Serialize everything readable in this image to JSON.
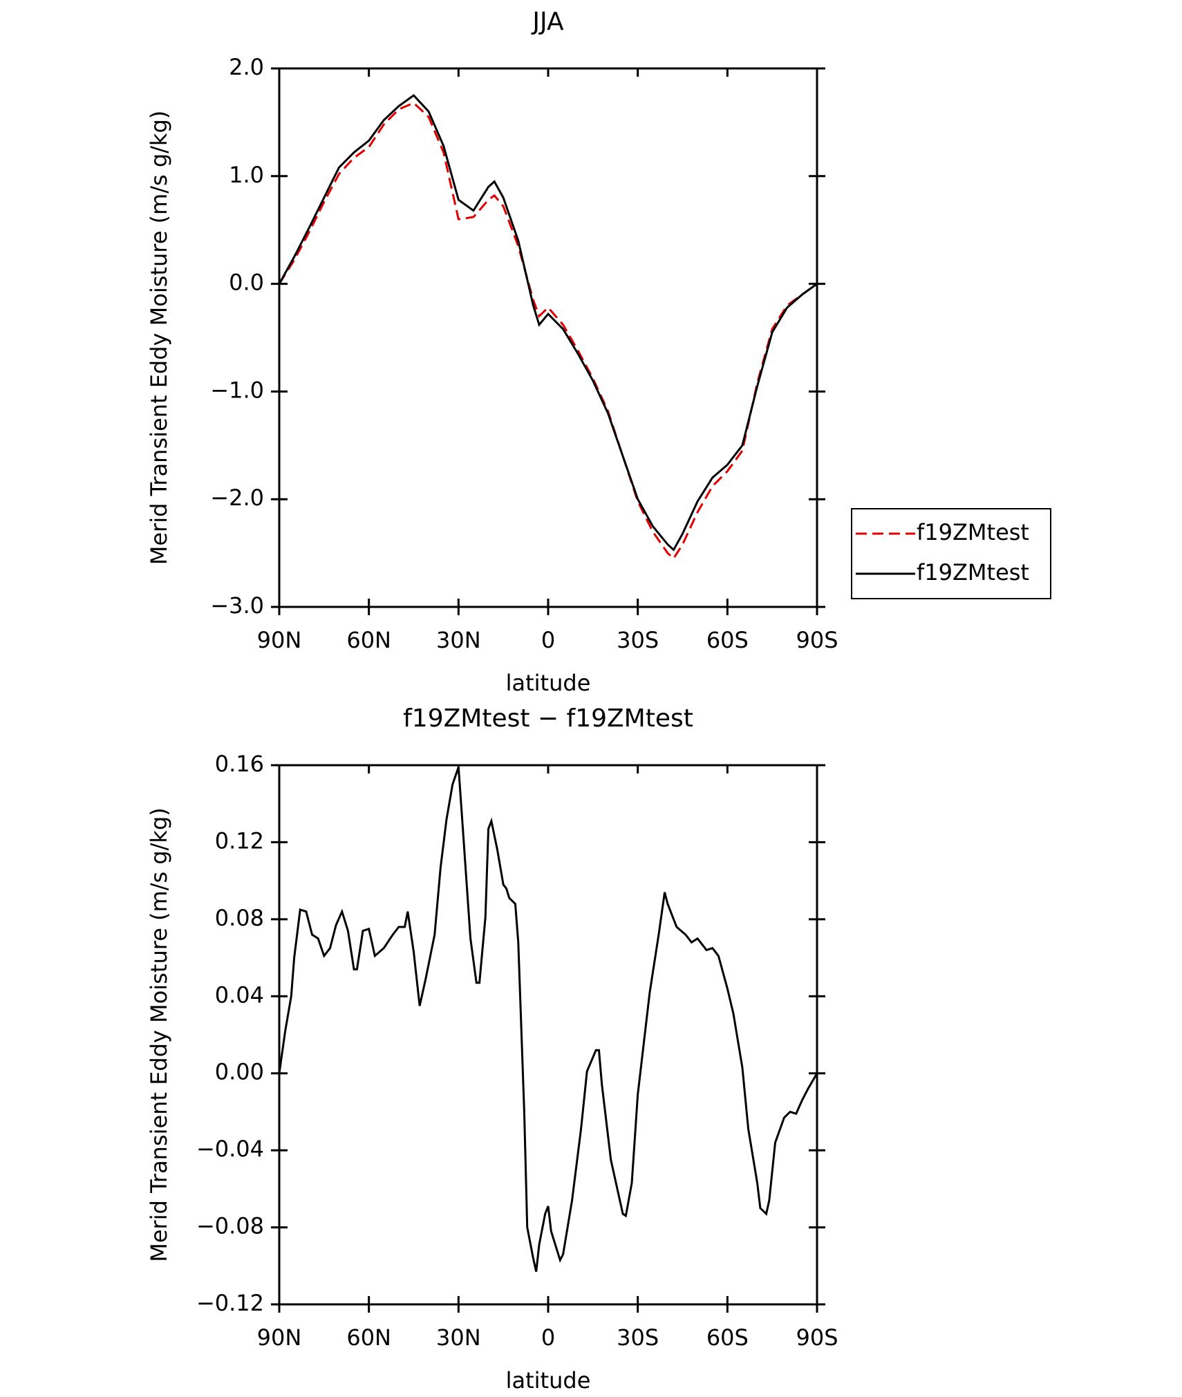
{
  "chart_data": [
    {
      "type": "line",
      "title": "JJA",
      "x": [
        90,
        85,
        80,
        75,
        70,
        65,
        60,
        55,
        50,
        45,
        40,
        35,
        30,
        25,
        20,
        18,
        15,
        10,
        5,
        3,
        0,
        -5,
        -10,
        -15,
        -20,
        -25,
        -30,
        -35,
        -40,
        -42,
        -45,
        -50,
        -55,
        -60,
        -65,
        -70,
        -75,
        -80,
        -85,
        -90
      ],
      "series": [
        {
          "name": "f19ZMtest",
          "color": "#e00000",
          "linestyle": "dashed",
          "values": [
            0,
            0.22,
            0.48,
            0.76,
            1.02,
            1.17,
            1.27,
            1.48,
            1.62,
            1.68,
            1.55,
            1.22,
            0.6,
            0.62,
            0.78,
            0.82,
            0.72,
            0.35,
            -0.15,
            -0.3,
            -0.22,
            -0.38,
            -0.62,
            -0.88,
            -1.18,
            -1.6,
            -2.02,
            -2.3,
            -2.5,
            -2.55,
            -2.42,
            -2.12,
            -1.88,
            -1.74,
            -1.55,
            -0.92,
            -0.42,
            -0.2,
            -0.1,
            0
          ]
        },
        {
          "name": "f19ZMtest",
          "color": "#000000",
          "linestyle": "solid",
          "values": [
            0,
            0.25,
            0.52,
            0.8,
            1.08,
            1.22,
            1.33,
            1.52,
            1.65,
            1.75,
            1.6,
            1.28,
            0.78,
            0.68,
            0.9,
            0.95,
            0.8,
            0.4,
            -0.2,
            -0.38,
            -0.28,
            -0.42,
            -0.65,
            -0.9,
            -1.2,
            -1.6,
            -2.0,
            -2.25,
            -2.42,
            -2.47,
            -2.32,
            -2.02,
            -1.8,
            -1.68,
            -1.5,
            -0.95,
            -0.45,
            -0.22,
            -0.1,
            0
          ]
        }
      ],
      "xlim": [
        90,
        -90
      ],
      "xticks": [
        {
          "value": 90,
          "label": "90N"
        },
        {
          "value": 60,
          "label": "60N"
        },
        {
          "value": 30,
          "label": "30N"
        },
        0,
        {
          "value": -30,
          "label": "30S"
        },
        {
          "value": -60,
          "label": "60S"
        },
        {
          "value": -90,
          "label": "90S"
        }
      ],
      "ylim": [
        -3,
        2
      ],
      "yticks": [
        {
          "value": 2,
          "label": "2.0"
        },
        {
          "value": 1,
          "label": "1.0"
        },
        {
          "value": 0,
          "label": "0.0"
        },
        {
          "value": -1,
          "label": "−1.0"
        },
        {
          "value": -2,
          "label": "−2.0"
        },
        {
          "value": -3,
          "label": "−3.0"
        }
      ],
      "x_label": "latitude",
      "y_label": "Merid Transient Eddy Moisture (m/s g/kg)",
      "legend": "right"
    },
    {
      "type": "line",
      "title": "f19ZMtest − f19ZMtest",
      "x": [
        90,
        88,
        86,
        85,
        83,
        81,
        79,
        77,
        75,
        73,
        71,
        69,
        67,
        65,
        64,
        62,
        60,
        58,
        55,
        52,
        50,
        48,
        47,
        45,
        43,
        41,
        38,
        36,
        34,
        32,
        30,
        29,
        26,
        24,
        23,
        21,
        20,
        19,
        17,
        15,
        14,
        13,
        11,
        10,
        8,
        7,
        5,
        4,
        3,
        1,
        0,
        -1,
        -4,
        -5,
        -8,
        -11,
        -13,
        -16,
        -17,
        -18,
        -21,
        -23,
        -25,
        -26,
        -28,
        -30,
        -34,
        -37,
        -39,
        -40,
        -43,
        -46,
        -48,
        -50,
        -53,
        -55,
        -57,
        -60,
        -62,
        -65,
        -67,
        -70,
        -71,
        -73,
        -74,
        -76,
        -79,
        -81,
        -83,
        -85,
        -87,
        -90
      ],
      "series": [
        {
          "color": "#000000",
          "linestyle": "solid",
          "values": [
            0,
            0.022,
            0.04,
            0.06,
            0.085,
            0.084,
            0.072,
            0.07,
            0.061,
            0.065,
            0.077,
            0.084,
            0.074,
            0.054,
            0.054,
            0.074,
            0.075,
            0.061,
            0.065,
            0.072,
            0.076,
            0.076,
            0.084,
            0.063,
            0.035,
            0.049,
            0.072,
            0.107,
            0.132,
            0.15,
            0.159,
            0.137,
            0.07,
            0.047,
            0.047,
            0.081,
            0.127,
            0.131,
            0.116,
            0.098,
            0.096,
            0.091,
            0.088,
            0.068,
            -0.02,
            -0.08,
            -0.096,
            -0.103,
            -0.089,
            -0.073,
            -0.069,
            -0.082,
            -0.097,
            -0.094,
            -0.066,
            -0.029,
            0.001,
            0.012,
            0.012,
            -0.006,
            -0.045,
            -0.059,
            -0.073,
            -0.074,
            -0.057,
            -0.011,
            0.042,
            0.072,
            0.094,
            0.088,
            0.076,
            0.072,
            0.068,
            0.07,
            0.064,
            0.065,
            0.061,
            0.044,
            0.031,
            0.003,
            -0.029,
            -0.057,
            -0.07,
            -0.073,
            -0.066,
            -0.036,
            -0.023,
            -0.02,
            -0.021,
            -0.014,
            -0.008,
            0
          ]
        }
      ],
      "xlim": [
        90,
        -90
      ],
      "xticks": [
        {
          "value": 90,
          "label": "90N"
        },
        {
          "value": 60,
          "label": "60N"
        },
        {
          "value": 30,
          "label": "30N"
        },
        0,
        {
          "value": -30,
          "label": "30S"
        },
        {
          "value": -60,
          "label": "60S"
        },
        {
          "value": -90,
          "label": "90S"
        }
      ],
      "ylim": [
        -0.12,
        0.16
      ],
      "yticks": [
        0.16,
        0.12,
        0.08,
        0.04,
        {
          "value": 0,
          "label": "0.00"
        },
        {
          "value": -0.04,
          "label": "−0.04"
        },
        {
          "value": -0.08,
          "label": "−0.08"
        },
        {
          "value": -0.12,
          "label": "−0.12"
        }
      ],
      "x_label": "latitude",
      "y_label": "Merid Transient Eddy Moisture (m/s g/kg)"
    }
  ]
}
